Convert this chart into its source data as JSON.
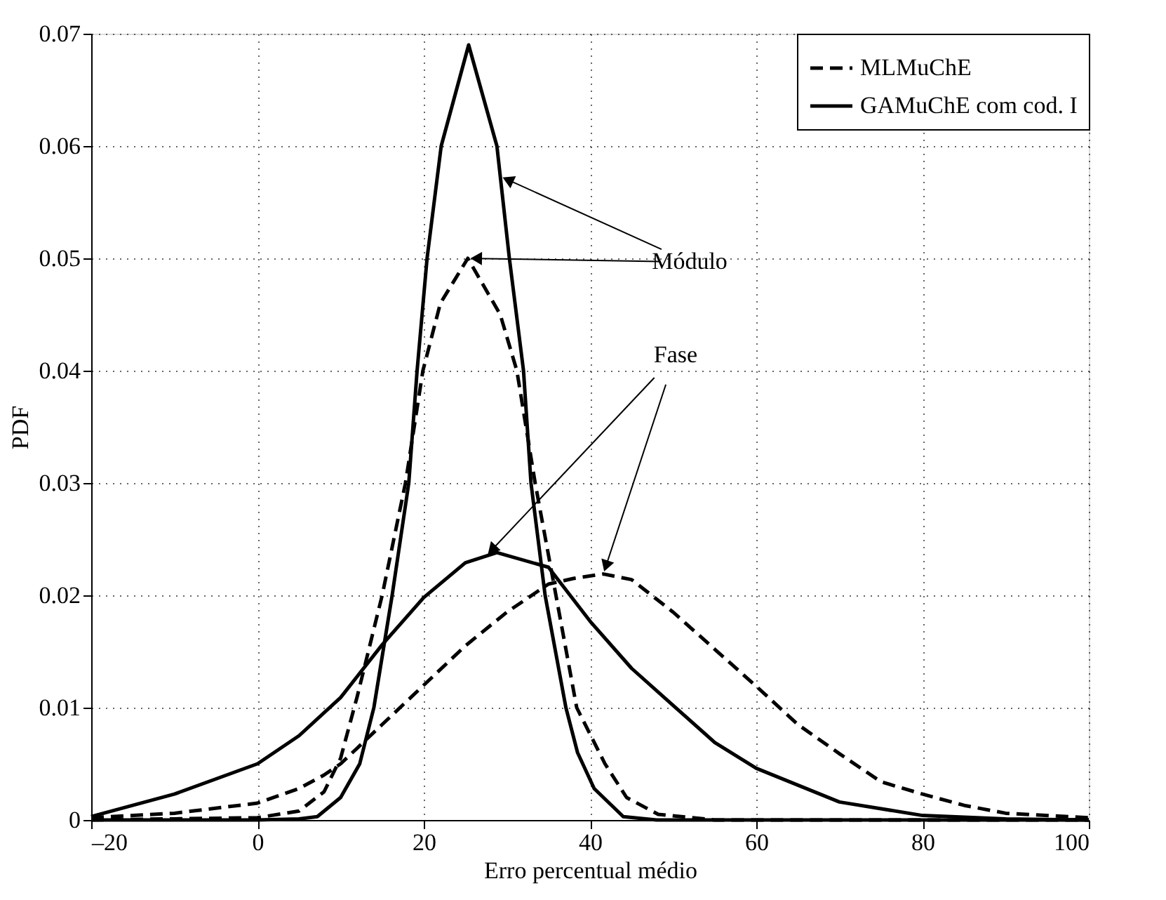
{
  "chart_data": {
    "type": "line",
    "xlabel": "Erro percentual médio",
    "ylabel": "PDF",
    "xlim": [
      -20,
      100
    ],
    "xticks": [
      {
        "value": -20,
        "label": "–20"
      },
      0,
      20,
      40,
      60,
      80,
      100
    ],
    "ylim": [
      0,
      0.07
    ],
    "yticks": [
      0,
      0.01,
      0.02,
      0.03,
      0.04,
      0.05,
      0.06,
      0.07
    ],
    "grid": true,
    "legend": "top right",
    "annotations": [
      {
        "text": "Módulo",
        "x": 29.2,
        "y": 0.0573
      },
      {
        "text": "Fase",
        "x": 27.5,
        "y": 0.0235
      }
    ],
    "series": [
      {
        "name": "MLMuChE",
        "color": "#000000",
        "line_style": "dashed",
        "x": [
          -20,
          -10,
          0,
          5,
          8,
          10,
          12,
          15,
          17.8,
          19.9,
          22,
          25.3,
          29.2,
          31.2,
          33.4,
          35.9,
          38.4,
          41.8,
          44.4,
          48.2,
          55,
          100
        ],
        "values": [
          0,
          0.0001,
          0.0002,
          0.0008,
          0.0025,
          0.0055,
          0.011,
          0.02,
          0.03,
          0.04,
          0.046,
          0.05,
          0.045,
          0.04,
          0.03,
          0.02,
          0.01,
          0.005,
          0.002,
          0.0005,
          0,
          0
        ]
      },
      {
        "name": "GAMuChE com cod. I",
        "color": "#000000",
        "line_style": "solid",
        "x": [
          -20,
          0,
          5,
          7.2,
          10,
          12.3,
          14,
          16.2,
          18.2,
          19.2,
          20.4,
          22.1,
          25.4,
          28.8,
          30.3,
          32,
          32.9,
          34.6,
          37.1,
          38.5,
          40.5,
          44,
          48,
          100
        ],
        "values": [
          0,
          0,
          0.0001,
          0.0003,
          0.002,
          0.005,
          0.01,
          0.02,
          0.03,
          0.04,
          0.05,
          0.06,
          0.069,
          0.06,
          0.05,
          0.04,
          0.03,
          0.02,
          0.01,
          0.006,
          0.0028,
          0.0003,
          0,
          0
        ]
      },
      {
        "color": "#000000",
        "line_style": "dashed",
        "x": [
          -20,
          -10,
          0,
          5,
          8,
          10,
          15,
          20,
          25,
          30,
          35,
          38,
          41.6,
          45,
          50,
          55,
          60,
          65,
          70,
          75,
          80,
          85,
          90,
          100
        ],
        "values": [
          0.0002,
          0.0006,
          0.0015,
          0.0028,
          0.004,
          0.005,
          0.0085,
          0.012,
          0.0155,
          0.0185,
          0.021,
          0.0215,
          0.0219,
          0.0214,
          0.0185,
          0.0152,
          0.0119,
          0.0085,
          0.0059,
          0.0034,
          0.0023,
          0.0013,
          0.0006,
          0.0002
        ]
      },
      {
        "color": "#000000",
        "line_style": "solid",
        "x": [
          -20,
          -10,
          0,
          5,
          10,
          15,
          20,
          25,
          28.8,
          35,
          40,
          45,
          50,
          55,
          60,
          70,
          80,
          90,
          100
        ],
        "values": [
          0.0003,
          0.0023,
          0.005,
          0.0075,
          0.0109,
          0.0156,
          0.0198,
          0.0229,
          0.0238,
          0.0225,
          0.0177,
          0.0135,
          0.0102,
          0.0069,
          0.0046,
          0.0016,
          0.0004,
          0.0001,
          0
        ]
      }
    ]
  }
}
